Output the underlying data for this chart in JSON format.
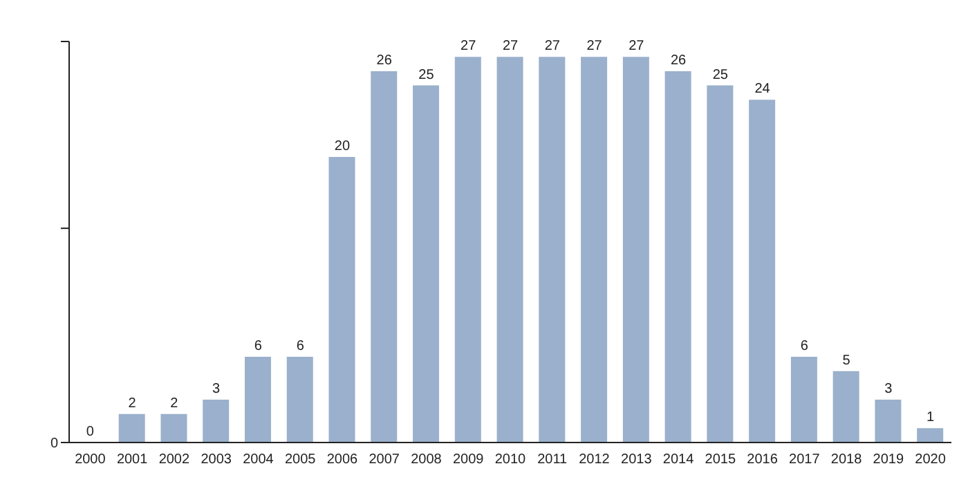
{
  "chart_data": {
    "type": "bar",
    "categories": [
      "2000",
      "2001",
      "2002",
      "2003",
      "2004",
      "2005",
      "2006",
      "2007",
      "2008",
      "2009",
      "2010",
      "2011",
      "2012",
      "2013",
      "2014",
      "2015",
      "2016",
      "2017",
      "2018",
      "2019",
      "2020"
    ],
    "values": [
      0,
      2,
      2,
      3,
      6,
      6,
      20,
      26,
      25,
      27,
      27,
      27,
      27,
      27,
      26,
      25,
      24,
      6,
      5,
      3,
      1
    ],
    "color": "#9ab0cc",
    "annotations": [
      "0"
    ],
    "data_labels": true
  }
}
